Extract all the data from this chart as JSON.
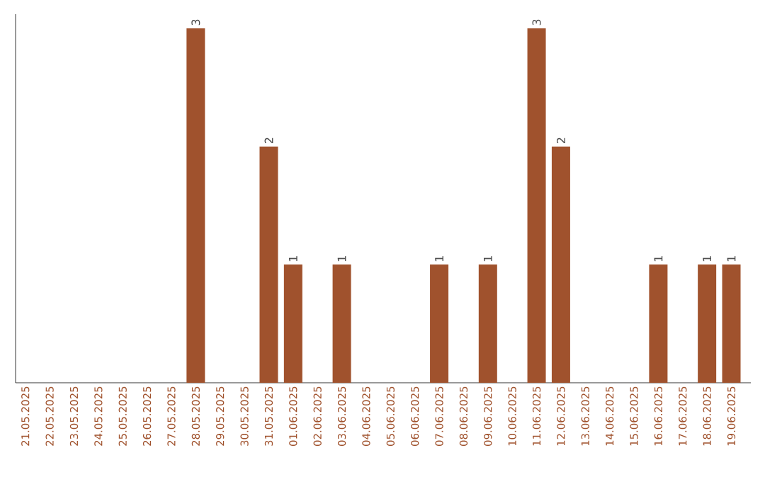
{
  "chart_data": {
    "type": "bar",
    "categories": [
      "21.05.2025",
      "22.05.2025",
      "23.05.2025",
      "24.05.2025",
      "25.05.2025",
      "26.05.2025",
      "27.05.2025",
      "28.05.2025",
      "29.05.2025",
      "30.05.2025",
      "31.05.2025",
      "01.06.2025",
      "02.06.2025",
      "03.06.2025",
      "04.06.2025",
      "05.06.2025",
      "06.06.2025",
      "07.06.2025",
      "08.06.2025",
      "09.06.2025",
      "10.06.2025",
      "11.06.2025",
      "12.06.2025",
      "13.06.2025",
      "14.06.2025",
      "15.06.2025",
      "16.06.2025",
      "17.06.2025",
      "18.06.2025",
      "19.06.2025"
    ],
    "values": [
      0,
      0,
      0,
      0,
      0,
      0,
      0,
      3,
      0,
      0,
      2,
      1,
      0,
      1,
      0,
      0,
      0,
      1,
      0,
      1,
      0,
      3,
      2,
      0,
      0,
      0,
      1,
      0,
      1,
      1
    ],
    "value_labels": [
      null,
      null,
      null,
      null,
      null,
      null,
      null,
      "3",
      null,
      null,
      "2",
      "1",
      null,
      "1",
      null,
      null,
      null,
      "1",
      null,
      "1",
      null,
      "3",
      "2",
      null,
      null,
      null,
      "1",
      null,
      "1",
      "1"
    ],
    "color": "#a0522d"
  }
}
